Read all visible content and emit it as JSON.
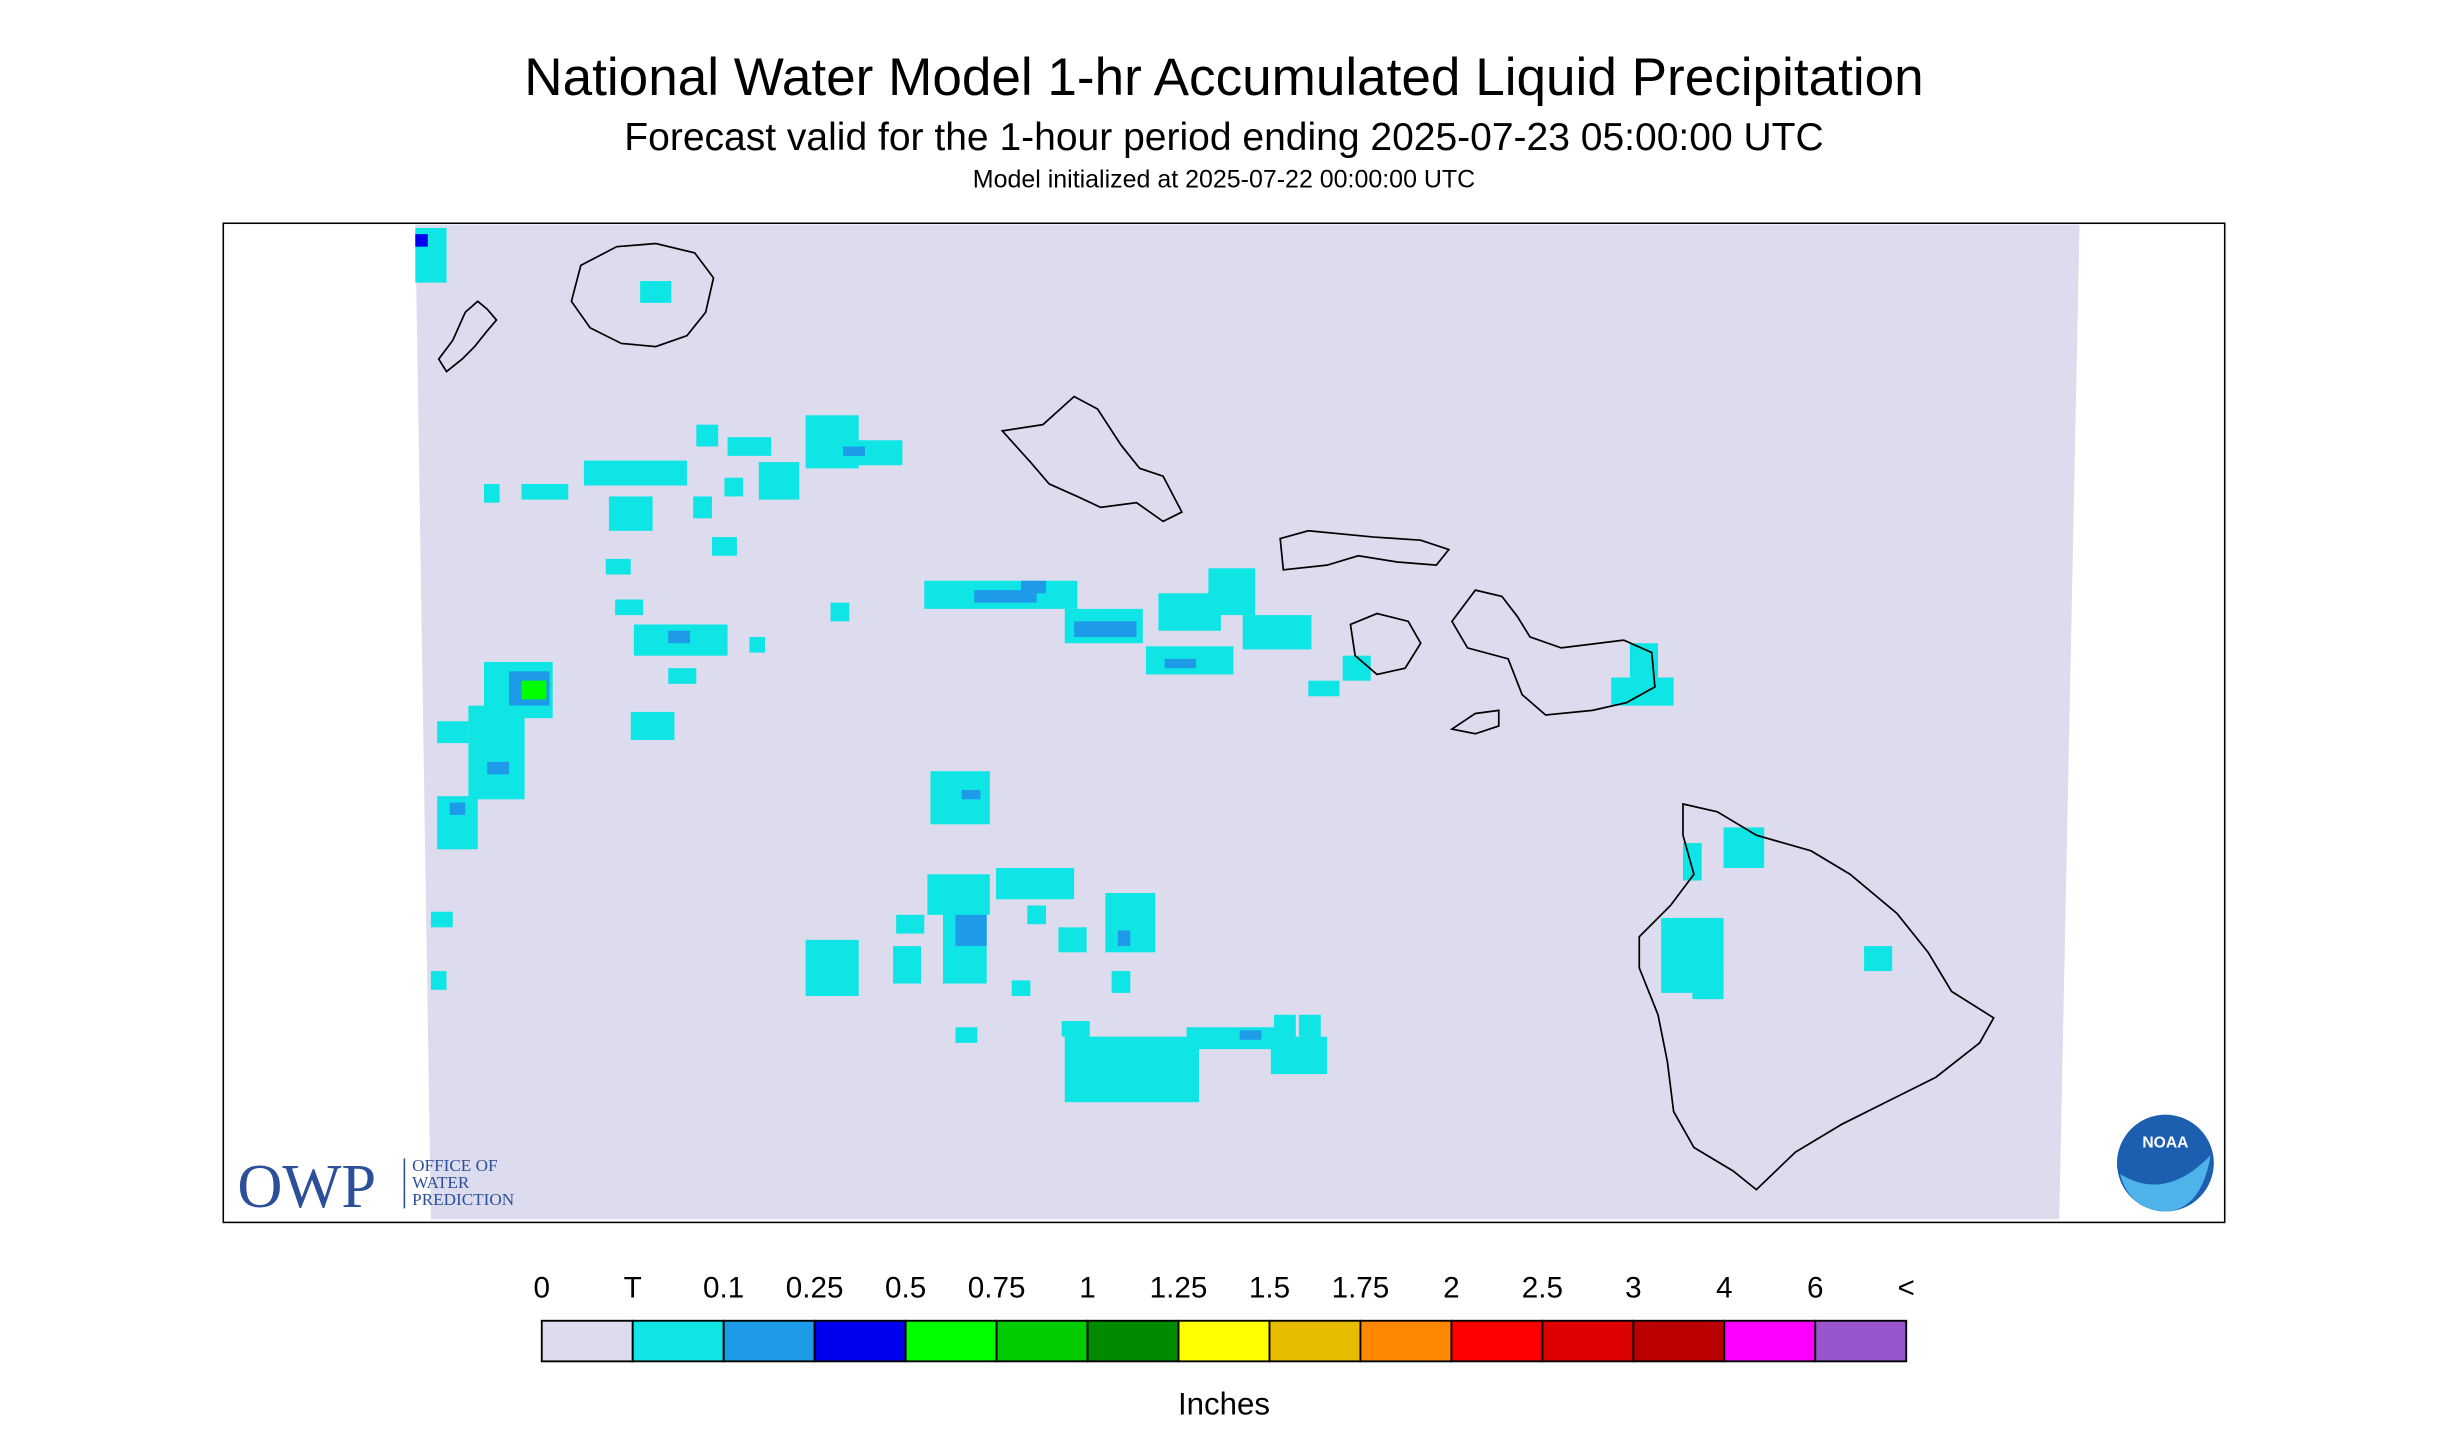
{
  "header": {
    "title": "National Water Model 1-hr Accumulated Liquid Precipitation",
    "subtitle": "Forecast valid for the 1-hour period ending 2025-07-23 05:00:00 UTC",
    "initialized": "Model initialized at 2025-07-22 00:00:00 UTC"
  },
  "legend": {
    "labels": [
      "0",
      "T",
      "0.1",
      "0.25",
      "0.5",
      "0.75",
      "1",
      "1.25",
      "1.5",
      "1.75",
      "2",
      "2.5",
      "3",
      "4",
      "6",
      "<"
    ],
    "colors": [
      "#dcdcee",
      "#10e5e5",
      "#1e9be8",
      "#0000ee",
      "#00ff00",
      "#00cc00",
      "#008a00",
      "#ffff00",
      "#e6bb00",
      "#ff8800",
      "#ff0000",
      "#dd0000",
      "#bb0000",
      "#ff00ff",
      "#9955cc"
    ],
    "unit": "Inches"
  },
  "logos": {
    "owp": "OWP",
    "owp_name": [
      "OFFICE OF",
      "WATER",
      "PREDICTION"
    ],
    "noaa": "NOAA"
  }
}
